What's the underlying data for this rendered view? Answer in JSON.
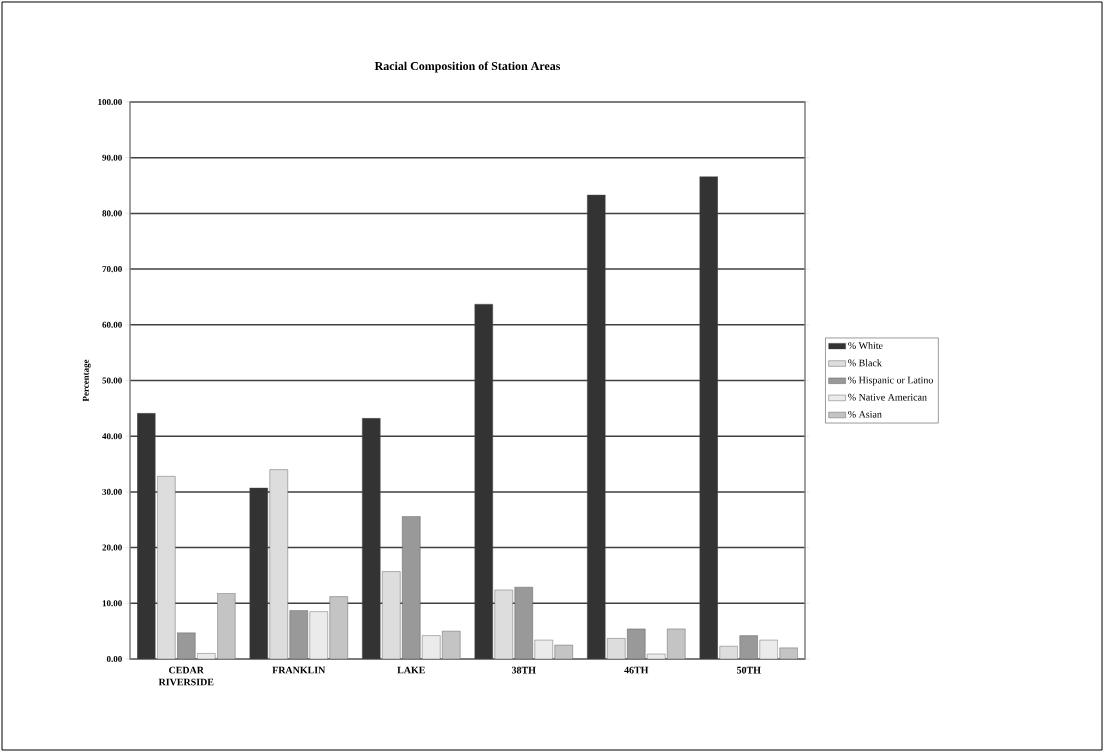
{
  "chart_data": {
    "type": "bar",
    "title": "Racial Composition of Station Areas",
    "ylabel": "Percentage",
    "categories": [
      "CEDAR RIVERSIDE",
      "FRANKLIN",
      "LAKE",
      "38TH",
      "46TH",
      "50TH"
    ],
    "series": [
      {
        "name": "% White",
        "color": "#333333",
        "values": [
          44.1,
          30.7,
          43.2,
          63.7,
          83.3,
          86.6
        ]
      },
      {
        "name": "% Black",
        "color": "#dddddd",
        "values": [
          32.8,
          34.0,
          15.7,
          12.4,
          3.7,
          2.3
        ]
      },
      {
        "name": "% Hispanic or Latino",
        "color": "#999999",
        "values": [
          4.7,
          8.7,
          25.6,
          12.9,
          5.4,
          4.2
        ]
      },
      {
        "name": "% Native American",
        "color": "#ebebeb",
        "values": [
          1.0,
          8.5,
          4.2,
          3.4,
          0.9,
          3.4
        ]
      },
      {
        "name": "% Asian",
        "color": "#c4c4c4",
        "values": [
          11.8,
          11.2,
          5.0,
          2.5,
          5.4,
          2.0
        ]
      }
    ],
    "ylim": [
      0,
      100
    ],
    "yticks": [
      {
        "value": 0,
        "label": "0.00"
      },
      {
        "value": 10,
        "label": "10.00"
      },
      {
        "value": 20,
        "label": "20.00"
      },
      {
        "value": 30,
        "label": "30.00"
      },
      {
        "value": 40,
        "label": "40.00"
      },
      {
        "value": 50,
        "label": "50.00"
      },
      {
        "value": 60,
        "label": "60.00"
      },
      {
        "value": 70,
        "label": "70.00"
      },
      {
        "value": 80,
        "label": "80.00"
      },
      {
        "value": 90,
        "label": "90.00"
      },
      {
        "value": 100,
        "label": "100.00"
      }
    ],
    "grid": "y",
    "legend": "right"
  }
}
